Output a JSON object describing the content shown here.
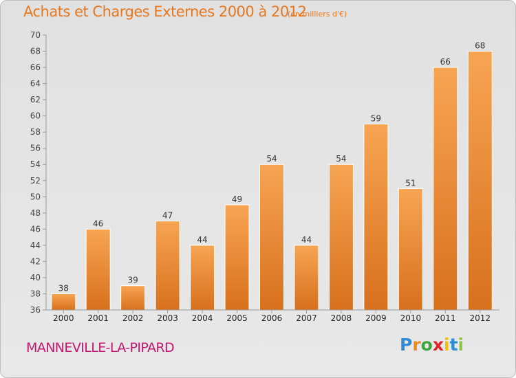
{
  "title": "Achats et Charges Externes 2000 à 2012",
  "subtitle": "(en milliers d'€)",
  "commune": "MANNEVILLE-LA-PIPARD",
  "logo": {
    "letters": [
      "P",
      "r",
      "o",
      "x",
      "i",
      "t",
      "i"
    ],
    "colors": [
      "#2e8bd6",
      "#f08a1c",
      "#3aa63a",
      "#e0262a",
      "#f2c100",
      "#2e8bd6",
      "#8dc63f"
    ]
  },
  "colors": {
    "bar_top": "#f7a553",
    "bar_bottom": "#d8701c",
    "title": "#e8771d",
    "commune": "#c3176e"
  },
  "chart_data": {
    "type": "bar",
    "title": "Achats et Charges Externes 2000 à 2012",
    "categories": [
      "2000",
      "2001",
      "2002",
      "2003",
      "2004",
      "2005",
      "2006",
      "2007",
      "2008",
      "2009",
      "2010",
      "2011",
      "2012"
    ],
    "values": [
      38,
      46,
      39,
      47,
      44,
      49,
      54,
      44,
      54,
      59,
      51,
      66,
      68
    ],
    "ylim": [
      36,
      70
    ],
    "yticks": [
      36,
      38,
      40,
      42,
      44,
      46,
      48,
      50,
      52,
      54,
      56,
      58,
      60,
      62,
      64,
      66,
      68,
      70
    ],
    "grid": false,
    "data_labels": true
  }
}
